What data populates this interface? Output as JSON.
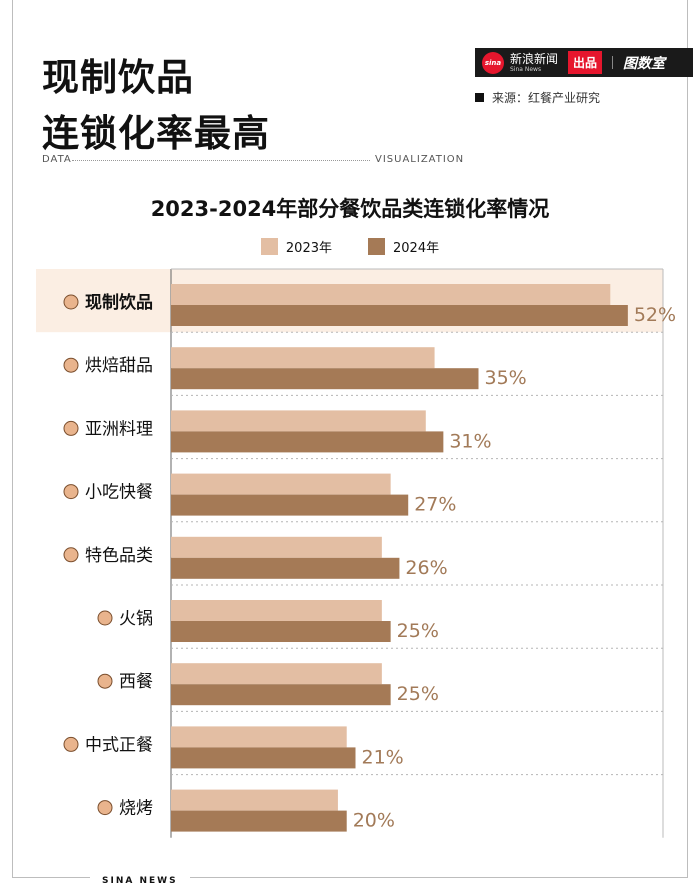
{
  "header": {
    "title": "现制饮品\n连锁化率最高",
    "brand_name": "新浪新闻",
    "brand_sub": "Sina News",
    "brand_logo": "sina",
    "brand_badge": "出品",
    "brand_logo2": "图数室",
    "source": "来源：红餐产业研究",
    "data_label": "DATA",
    "viz_label": "VISUALIZATION"
  },
  "footer": {
    "text": "SINA NEWS"
  },
  "colors": {
    "series_2023": "#e3bea3",
    "series_2024": "#a57a56",
    "highlight_row": "#fbeee3",
    "value_label": "#a27a58"
  },
  "chart_data": {
    "type": "bar",
    "orientation": "horizontal",
    "title": "2023-2024年部分餐饮品类连锁化率情况",
    "categories": [
      "现制饮品",
      "烘焙甜品",
      "亚洲料理",
      "小吃快餐",
      "特色品类",
      "火锅",
      "西餐",
      "中式正餐",
      "烧烤"
    ],
    "category_icons": [
      "bubble-tea-icon",
      "cupcake-icon",
      "noodle-bowl-icon",
      "burger-icon",
      "dumpling-icon",
      "hotpot-icon",
      "pizza-icon",
      "chinese-dish-icon",
      "skewers-icon"
    ],
    "series": [
      {
        "name": "2023年",
        "values": [
          50,
          30,
          29,
          25,
          24,
          24,
          24,
          20,
          19
        ]
      },
      {
        "name": "2024年",
        "values": [
          52,
          35,
          31,
          27,
          26,
          25,
          25,
          21,
          20
        ]
      }
    ],
    "data_labels": [
      "52%",
      "35%",
      "31%",
      "27%",
      "26%",
      "25%",
      "25%",
      "21%",
      "20%"
    ],
    "highlight_category": "现制饮品",
    "xlim": [
      0,
      56
    ],
    "grid": false,
    "legend_position": "top-center"
  }
}
